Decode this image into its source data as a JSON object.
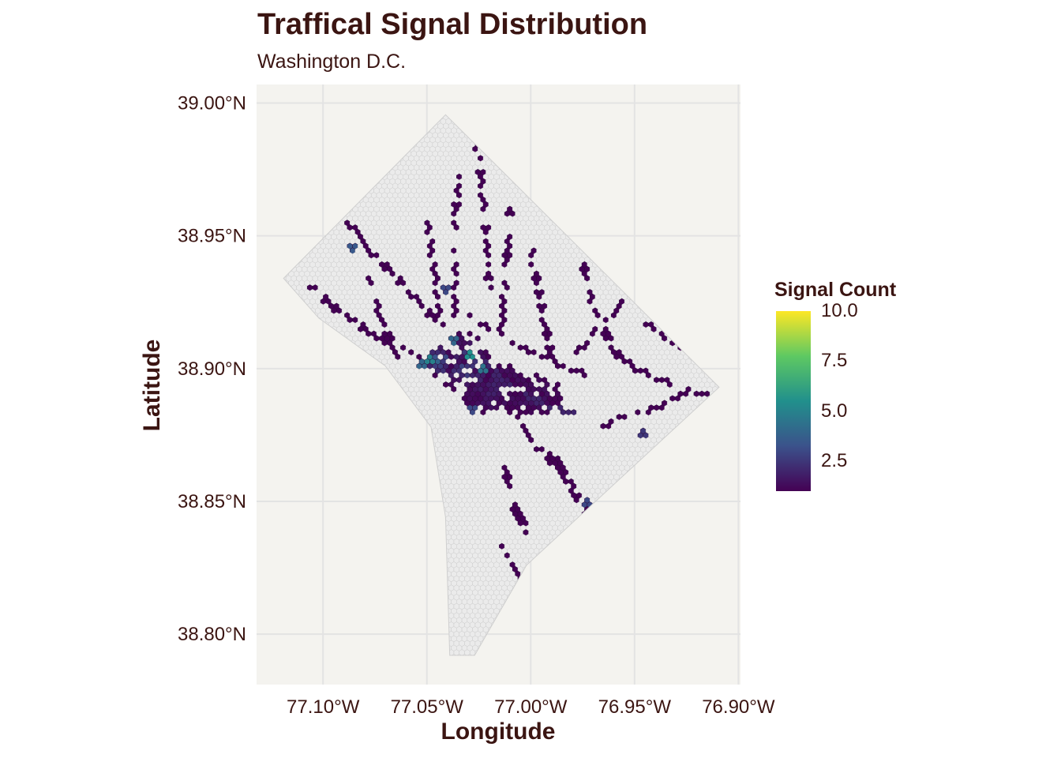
{
  "title": "Traffical Signal Distribution",
  "subtitle": "Washington D.C.",
  "chart_data": {
    "type": "heatmap",
    "subtype": "hexbin-map",
    "title": "Traffical Signal Distribution",
    "subtitle": "Washington D.C.",
    "xlabel": "Longitude",
    "ylabel": "Latitude",
    "x_ticks": [
      {
        "value": -77.1,
        "label": "77.10°W"
      },
      {
        "value": -77.05,
        "label": "77.05°W"
      },
      {
        "value": -77.0,
        "label": "77.00°W"
      },
      {
        "value": -76.95,
        "label": "76.95°W"
      },
      {
        "value": -76.9,
        "label": "76.90°W"
      }
    ],
    "y_ticks": [
      {
        "value": 39.0,
        "label": "39.00°N"
      },
      {
        "value": 38.95,
        "label": "38.95°N"
      },
      {
        "value": 38.9,
        "label": "38.90°N"
      },
      {
        "value": 38.85,
        "label": "38.85°N"
      },
      {
        "value": 38.8,
        "label": "38.80°N"
      }
    ],
    "xlim": [
      -77.132,
      -76.899
    ],
    "ylim": [
      38.781,
      39.007
    ],
    "grid": true,
    "legend": {
      "title": "Signal Count",
      "position": "right",
      "scale": "viridis",
      "range": [
        1,
        10
      ],
      "breaks": [
        {
          "value": 10.0,
          "label": "10.0"
        },
        {
          "value": 7.5,
          "label": "7.5"
        },
        {
          "value": 5.0,
          "label": "5.0"
        },
        {
          "value": 2.5,
          "label": "2.5"
        }
      ]
    },
    "colors": {
      "panel_background": "#f4f3ef",
      "grid": "#e3e3e3",
      "empty_hex": "#ebebeb",
      "low": "#440154",
      "high": "#fde725",
      "text": "#3b1512"
    },
    "boundary": [
      [
        -77.041,
        38.9956
      ],
      [
        -76.9093,
        38.893
      ],
      [
        -77.002,
        38.826
      ],
      [
        -77.027,
        38.792
      ],
      [
        -77.039,
        38.792
      ],
      [
        -77.041,
        38.844
      ],
      [
        -77.048,
        38.878
      ],
      [
        -77.07,
        38.901
      ],
      [
        -77.102,
        38.919
      ],
      [
        -77.119,
        38.934
      ]
    ],
    "signal_lines": [
      {
        "path": [
          [
            -77.078,
            38.935
          ],
          [
            -77.072,
            38.918
          ],
          [
            -77.064,
            38.905
          ]
        ],
        "value": 1
      },
      {
        "path": [
          [
            -77.05,
            38.955
          ],
          [
            -77.046,
            38.935
          ],
          [
            -77.043,
            38.915
          ]
        ],
        "value": 1
      },
      {
        "path": [
          [
            -77.035,
            38.985
          ],
          [
            -77.036,
            38.95
          ],
          [
            -77.036,
            38.92
          ]
        ],
        "value": 1
      },
      {
        "path": [
          [
            -77.026,
            38.985
          ],
          [
            -77.022,
            38.96
          ],
          [
            -77.02,
            38.93
          ]
        ],
        "value": 1
      },
      {
        "path": [
          [
            -77.088,
            38.955
          ],
          [
            -77.078,
            38.945
          ],
          [
            -77.062,
            38.932
          ],
          [
            -77.046,
            38.918
          ]
        ],
        "value": 1
      },
      {
        "path": [
          [
            -77.108,
            38.932
          ],
          [
            -77.09,
            38.92
          ],
          [
            -77.07,
            38.91
          ],
          [
            -77.052,
            38.903
          ]
        ],
        "value": 1
      },
      {
        "path": [
          [
            -77.01,
            38.96
          ],
          [
            -77.012,
            38.935
          ],
          [
            -77.014,
            38.915
          ]
        ],
        "value": 1
      },
      {
        "path": [
          [
            -77.0,
            38.945
          ],
          [
            -76.995,
            38.925
          ],
          [
            -76.99,
            38.905
          ]
        ],
        "value": 1
      },
      {
        "path": [
          [
            -77.03,
            38.92
          ],
          [
            -77.0,
            38.906
          ],
          [
            -76.972,
            38.897
          ]
        ],
        "value": 1
      },
      {
        "path": [
          [
            -76.975,
            38.94
          ],
          [
            -76.97,
            38.925
          ],
          [
            -76.962,
            38.91
          ]
        ],
        "value": 1
      },
      {
        "path": [
          [
            -76.962,
            38.908
          ],
          [
            -76.95,
            38.9
          ],
          [
            -76.935,
            38.895
          ],
          [
            -76.915,
            38.89
          ]
        ],
        "value": 1
      },
      {
        "path": [
          [
            -76.965,
            38.878
          ],
          [
            -76.955,
            38.882
          ],
          [
            -76.94,
            38.885
          ],
          [
            -76.925,
            38.891
          ]
        ],
        "value": 1
      },
      {
        "path": [
          [
            -77.01,
            38.885
          ],
          [
            -76.998,
            38.872
          ],
          [
            -76.985,
            38.86
          ]
        ],
        "value": 1
      },
      {
        "path": [
          [
            -76.99,
            38.868
          ],
          [
            -76.98,
            38.855
          ],
          [
            -76.97,
            38.842
          ]
        ],
        "value": 1
      },
      {
        "path": [
          [
            -77.012,
            38.862
          ],
          [
            -77.008,
            38.848
          ],
          [
            -77.0,
            38.836
          ]
        ],
        "value": 1
      },
      {
        "path": [
          [
            -77.014,
            38.832
          ],
          [
            -77.008,
            38.824
          ],
          [
            -77.004,
            38.82
          ]
        ],
        "value": 1
      },
      {
        "path": [
          [
            -77.022,
            38.902
          ],
          [
            -77.01,
            38.893
          ],
          [
            -76.992,
            38.886
          ],
          [
            -76.978,
            38.883
          ]
        ],
        "value": 2
      },
      {
        "path": [
          [
            -77.055,
            38.902
          ],
          [
            -77.042,
            38.9
          ],
          [
            -77.03,
            38.898
          ],
          [
            -77.015,
            38.894
          ]
        ],
        "value": 2
      },
      {
        "path": [
          [
            -76.978,
            38.905
          ],
          [
            -76.968,
            38.915
          ],
          [
            -76.955,
            38.925
          ]
        ],
        "value": 1
      },
      {
        "path": [
          [
            -76.945,
            38.918
          ],
          [
            -76.935,
            38.912
          ],
          [
            -76.925,
            38.907
          ]
        ],
        "value": 1
      }
    ],
    "dense_areas": [
      {
        "center": [
          -77.032,
          38.902
        ],
        "radius": [
          0.012,
          0.012
        ],
        "value": 2.5
      },
      {
        "center": [
          -77.018,
          38.893
        ],
        "radius": [
          0.018,
          0.01
        ],
        "value": 1.8
      },
      {
        "center": [
          -77.0,
          38.89
        ],
        "radius": [
          0.016,
          0.008
        ],
        "value": 1.5
      },
      {
        "center": [
          -77.045,
          38.903
        ],
        "radius": [
          0.008,
          0.006
        ],
        "value": 3.5
      }
    ],
    "hot_spots": [
      {
        "lon": -77.03,
        "lat": 38.905,
        "value": 5.5
      },
      {
        "lon": -77.048,
        "lat": 38.903,
        "value": 5.0
      },
      {
        "lon": -77.023,
        "lat": 38.9,
        "value": 4.5
      },
      {
        "lon": -77.052,
        "lat": 38.901,
        "value": 4.0
      },
      {
        "lon": -77.037,
        "lat": 38.91,
        "value": 4.0
      },
      {
        "lon": -77.085,
        "lat": 38.946,
        "value": 3.5
      },
      {
        "lon": -77.04,
        "lat": 38.93,
        "value": 3.0
      },
      {
        "lon": -76.967,
        "lat": 38.943,
        "value": 3.0
      },
      {
        "lon": -77.028,
        "lat": 38.885,
        "value": 3.0
      },
      {
        "lon": -76.973,
        "lat": 38.85,
        "value": 3.0
      },
      {
        "lon": -76.945,
        "lat": 38.875,
        "value": 2.5
      }
    ]
  }
}
